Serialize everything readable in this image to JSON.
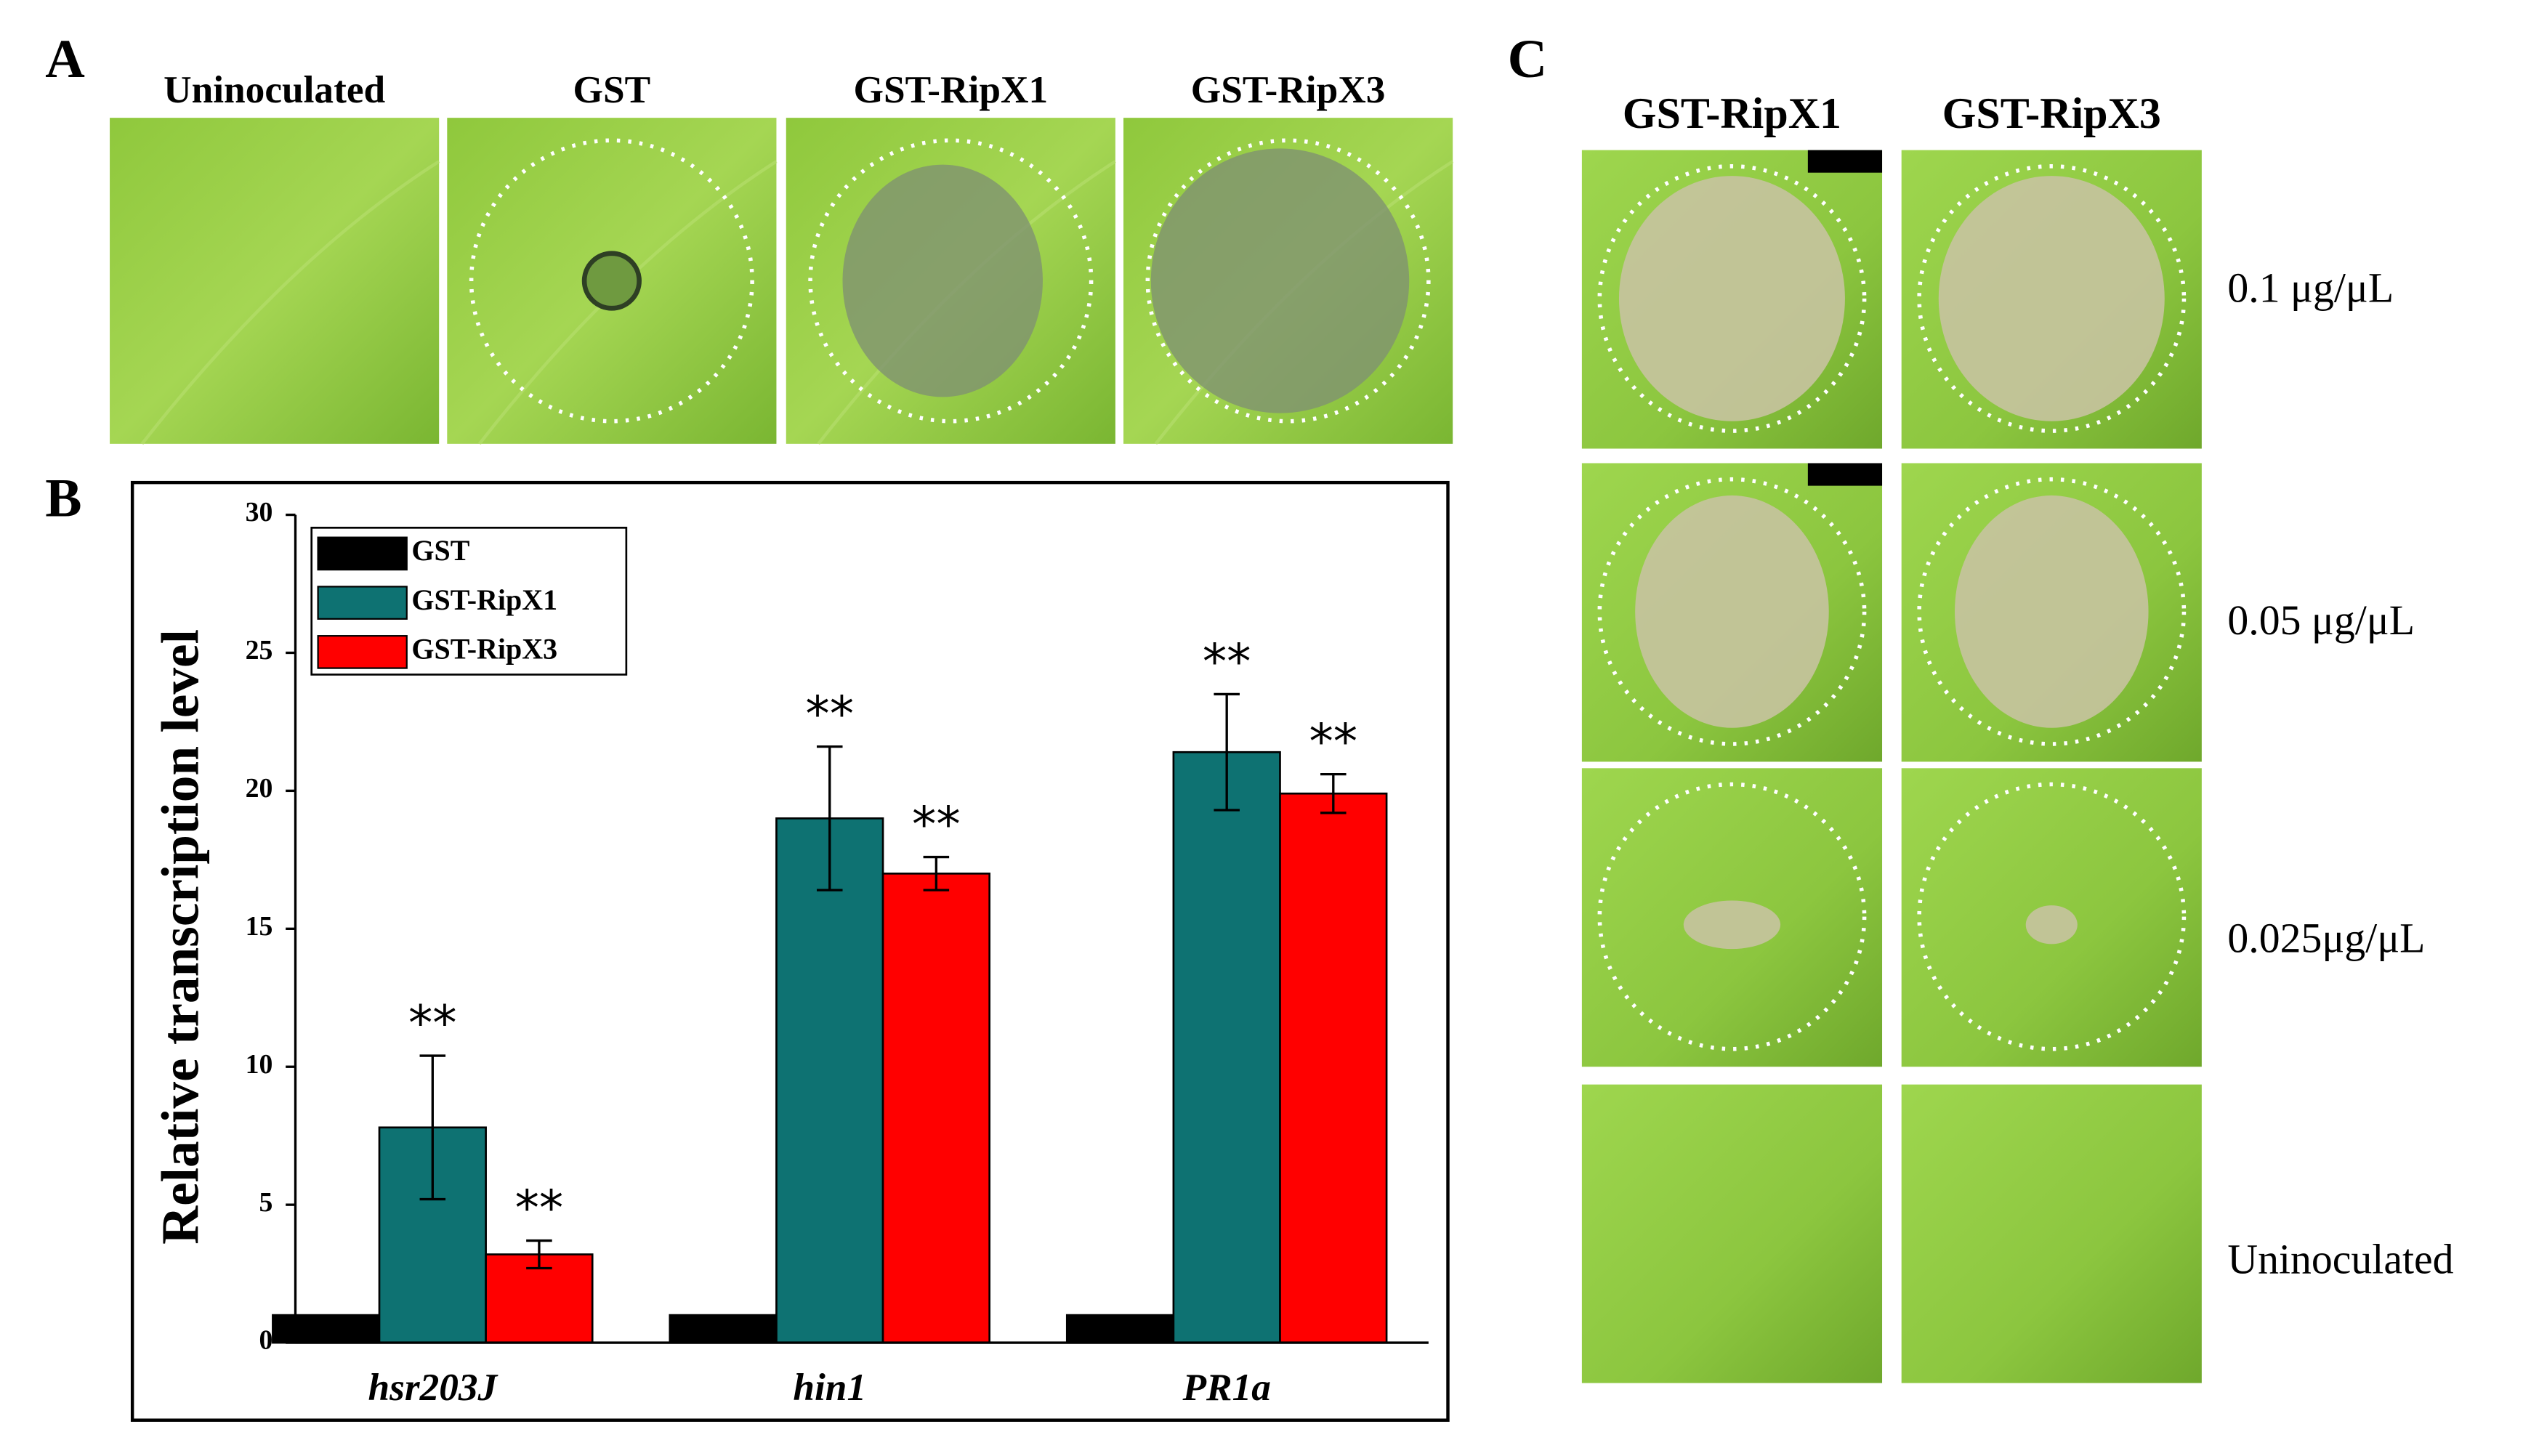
{
  "panels": {
    "A": {
      "label": "A",
      "columns": [
        "Uninoculated",
        "GST",
        "GST-RipX1",
        "GST-RipX3"
      ]
    },
    "B": {
      "label": "B"
    },
    "C": {
      "label": "C",
      "columns": [
        "GST-RipX1",
        "GST-RipX3"
      ],
      "rows": [
        "0.1 μg/μL",
        "0.05 μg/μL",
        "0.025μg/μL",
        "Uninoculated"
      ]
    }
  },
  "chart_data": {
    "type": "bar",
    "y_label": "Relative transcription level",
    "categories": [
      "hsr203J",
      "hin1",
      "PR1a"
    ],
    "series": [
      {
        "name": "GST",
        "color": "#000000",
        "values": [
          1,
          1,
          1
        ]
      },
      {
        "name": "GST-RipX1",
        "color": "#0e7272",
        "values": [
          7.8,
          19,
          21.4
        ],
        "errors": [
          2.6,
          2.6,
          2.1
        ],
        "annotations": [
          "**",
          "**",
          "**"
        ]
      },
      {
        "name": "GST-RipX3",
        "color": "#ff0000",
        "values": [
          3.2,
          17,
          19.9
        ],
        "errors": [
          0.5,
          0.6,
          0.7
        ],
        "annotations": [
          "**",
          "**",
          "**"
        ]
      }
    ],
    "ylim": [
      0,
      30
    ],
    "yticks": [
      0,
      5,
      10,
      15,
      20,
      25,
      30
    ],
    "legend": "upper left"
  }
}
